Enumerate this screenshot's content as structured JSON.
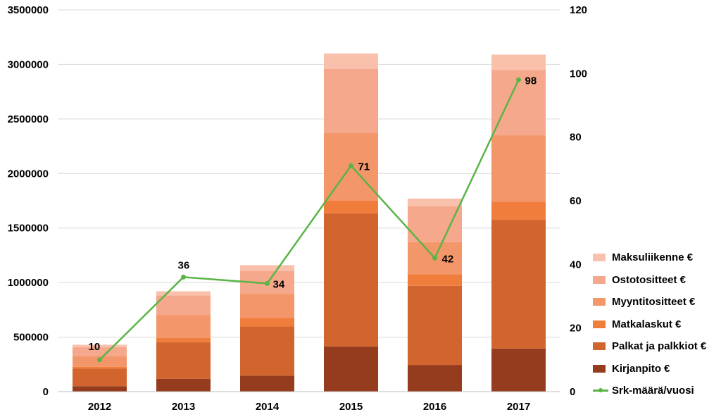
{
  "chart_data": {
    "type": "bar",
    "stacked": true,
    "categories": [
      "2012",
      "2013",
      "2014",
      "2015",
      "2016",
      "2017"
    ],
    "series": [
      {
        "name": "Kirjanpito €",
        "color": "#963c1e",
        "values": [
          50000,
          118000,
          147000,
          415000,
          245000,
          395000
        ]
      },
      {
        "name": "Palkat ja palkkiot €",
        "color": "#d2642d",
        "values": [
          160000,
          335000,
          450000,
          1220000,
          725000,
          1180000
        ]
      },
      {
        "name": "Matkalaskut €",
        "color": "#f07d3c",
        "values": [
          18000,
          40000,
          80000,
          115000,
          105000,
          165000
        ]
      },
      {
        "name": "Myyntitositteet €",
        "color": "#f39669",
        "values": [
          100000,
          210000,
          220000,
          620000,
          295000,
          610000
        ]
      },
      {
        "name": "Ostotositteet €",
        "color": "#f5a88c",
        "values": [
          80000,
          180000,
          210000,
          590000,
          330000,
          600000
        ]
      },
      {
        "name": "Maksuliikenne €",
        "color": "#f9c1ac",
        "values": [
          22000,
          37000,
          53000,
          140000,
          70000,
          140000
        ]
      }
    ],
    "line_series": {
      "name": "Srk-määrä/vuosi",
      "color": "#5ab446",
      "axis": "right",
      "values": [
        10,
        36,
        34,
        71,
        42,
        98
      ],
      "labels": [
        "10",
        "36",
        "34",
        "71",
        "42",
        "98"
      ]
    },
    "y_left": {
      "min": 0,
      "max": 3500000,
      "ticks": [
        "0",
        "500000",
        "1000000",
        "1500000",
        "2000000",
        "2500000",
        "3000000",
        "3500000"
      ]
    },
    "y_right": {
      "min": 0,
      "max": 120,
      "ticks": [
        "0",
        "20",
        "40",
        "60",
        "80",
        "100",
        "120"
      ]
    },
    "grid": true,
    "legend_position": "right"
  }
}
